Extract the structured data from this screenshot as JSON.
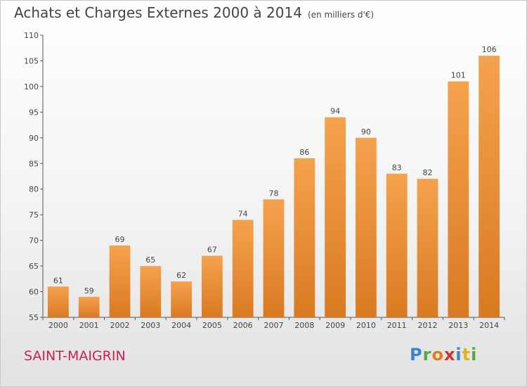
{
  "header": {
    "title": "Achats et Charges Externes 2000 à 2014",
    "subtitle": "(en milliers d'€)"
  },
  "footer": {
    "commune": "SAINT-MAIGRIN",
    "logo_letters": [
      "P",
      "r",
      "o",
      "x",
      "i",
      "t",
      "i"
    ]
  },
  "colors": {
    "bar_top": "#f5a24d",
    "bar_bottom": "#d97a22",
    "commune": "#c8234e",
    "logo": [
      "#3c86c8",
      "#5aa642",
      "#e47c1e",
      "#d03232",
      "#3c86c8",
      "#e4b21e",
      "#5aa642"
    ]
  },
  "chart_data": {
    "type": "bar",
    "title": "Achats et Charges Externes 2000 à 2014",
    "subtitle": "(en milliers d'€)",
    "categories": [
      "2000",
      "2001",
      "2002",
      "2003",
      "2004",
      "2005",
      "2006",
      "2007",
      "2008",
      "2009",
      "2010",
      "2011",
      "2012",
      "2013",
      "2014"
    ],
    "values": [
      61,
      59,
      69,
      65,
      62,
      67,
      74,
      78,
      86,
      94,
      90,
      83,
      82,
      101,
      106
    ],
    "ylim": [
      55,
      110
    ],
    "yticks": [
      55,
      60,
      65,
      70,
      75,
      80,
      85,
      90,
      95,
      100,
      105,
      110
    ],
    "grid": false,
    "legend": "none"
  }
}
